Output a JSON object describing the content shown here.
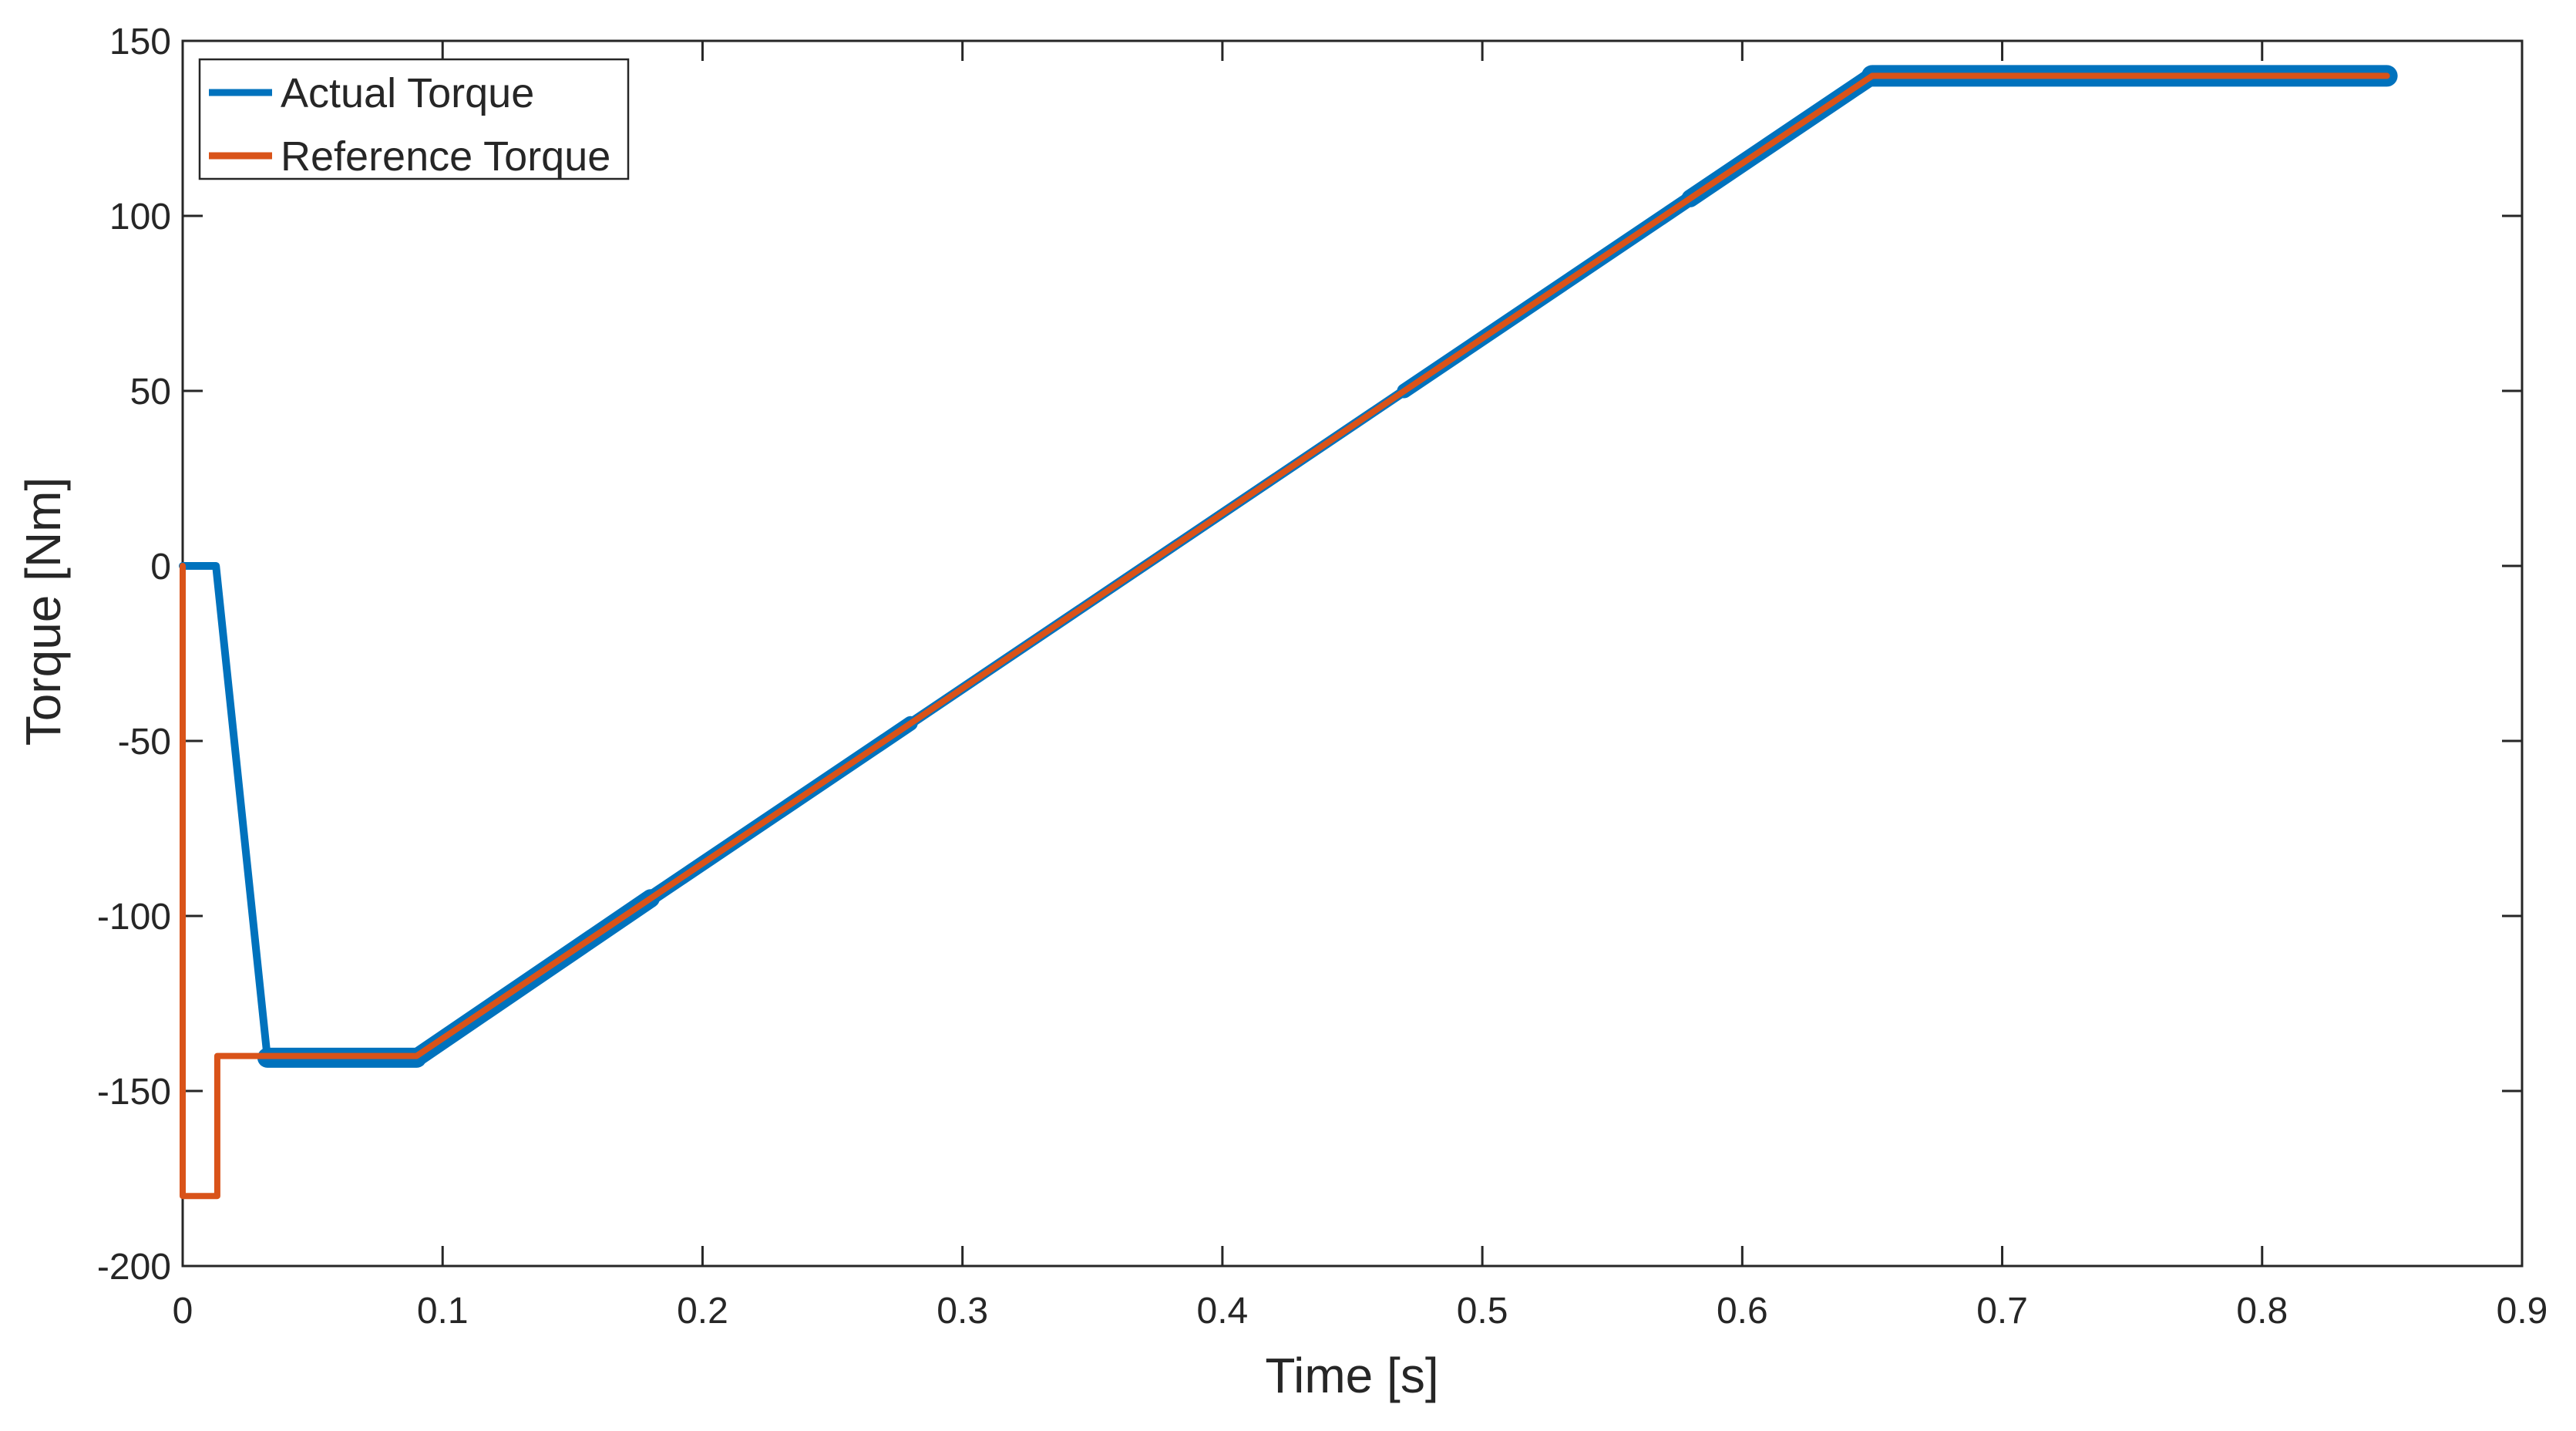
{
  "chart_data": {
    "type": "line",
    "title": "",
    "xlabel": "Time [s]",
    "ylabel": "Torque [Nm]",
    "xlim": [
      0,
      0.9
    ],
    "ylim": [
      -200,
      150
    ],
    "grid": false,
    "box": true,
    "tick_direction": "in",
    "axis_color": "#262626",
    "background": "#ffffff",
    "xtick_values": [
      0,
      0.1,
      0.2,
      0.3,
      0.4,
      0.5,
      0.6,
      0.7,
      0.8,
      0.9
    ],
    "xtick_labels": [
      "0",
      "0.1",
      "0.2",
      "0.3",
      "0.4",
      "0.5",
      "0.6",
      "0.7",
      "0.8",
      "0.9"
    ],
    "ytick_values": [
      -200,
      -150,
      -100,
      -50,
      0,
      50,
      100,
      150
    ],
    "ytick_labels": [
      "-200",
      "-150",
      "-100",
      "-50",
      "0",
      "50",
      "100",
      "150"
    ],
    "legend": {
      "position": "top-left",
      "entries": [
        {
          "label": "Actual Torque",
          "color": "#0072BD"
        },
        {
          "label": "Reference Torque",
          "color": "#D95319"
        }
      ]
    },
    "series": [
      {
        "name": "Actual Torque",
        "color": "#0072BD",
        "style": "ripple-band",
        "segments": [
          {
            "width": 10,
            "points": [
              [
                0,
                0
              ],
              [
                0.0128,
                0
              ],
              [
                0.0326,
                -140.5
              ]
            ]
          },
          {
            "width": 26,
            "points": [
              [
                0.0326,
                -140.5
              ],
              [
                0.09,
                -140.5
              ]
            ]
          },
          {
            "width": 24,
            "points": [
              [
                0.09,
                -140.5
              ],
              [
                0.18,
                -95
              ]
            ]
          },
          {
            "width": 19,
            "points": [
              [
                0.18,
                -95
              ],
              [
                0.28,
                -45
              ]
            ]
          },
          {
            "width": 13,
            "points": [
              [
                0.28,
                -45
              ],
              [
                0.47,
                50
              ]
            ]
          },
          {
            "width": 19,
            "points": [
              [
                0.47,
                50
              ],
              [
                0.58,
                105
              ]
            ]
          },
          {
            "width": 23,
            "points": [
              [
                0.58,
                105
              ],
              [
                0.65,
                140
              ]
            ]
          },
          {
            "width": 28,
            "points": [
              [
                0.65,
                140
              ],
              [
                0.848,
                140
              ]
            ]
          }
        ]
      },
      {
        "name": "Reference Torque",
        "color": "#D95319",
        "style": "line",
        "segments": [
          {
            "width": 8,
            "points": [
              [
                0,
                0
              ],
              [
                0,
                -180
              ],
              [
                0.0133,
                -180
              ],
              [
                0.0133,
                -140
              ],
              [
                0.09,
                -140
              ],
              [
                0.65,
                140
              ],
              [
                0.848,
                140
              ]
            ]
          }
        ]
      }
    ]
  }
}
